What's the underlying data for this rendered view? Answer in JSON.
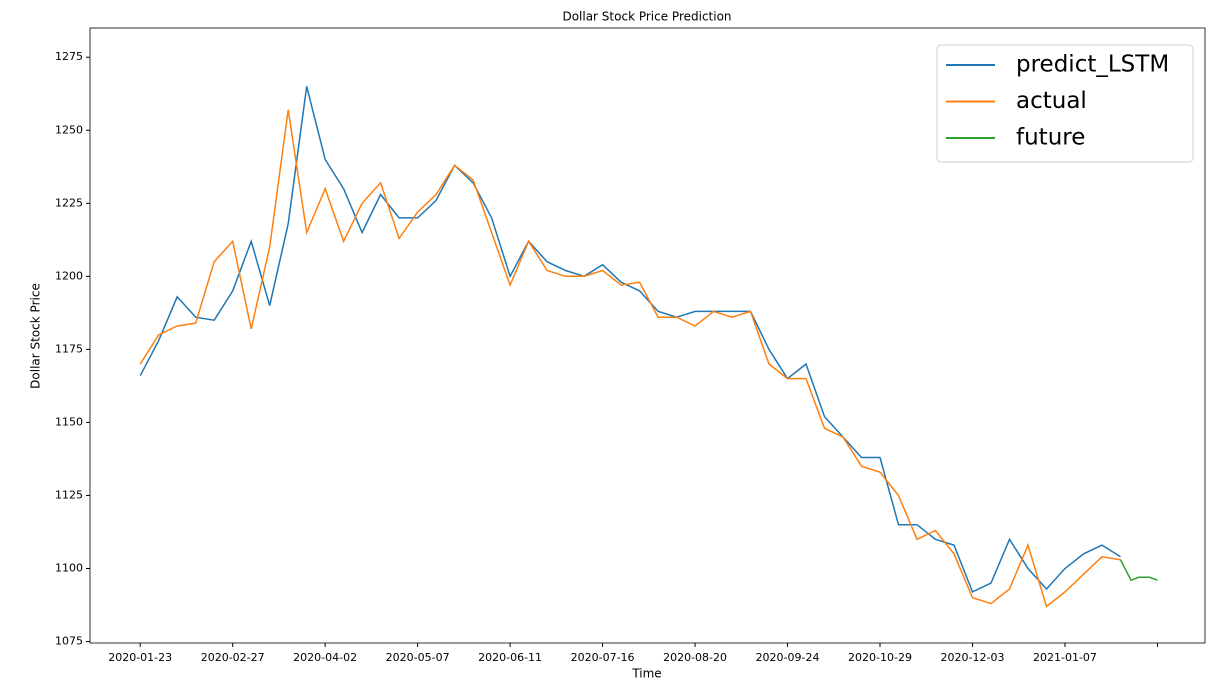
{
  "chart_data": {
    "type": "line",
    "title": "Dollar Stock Price Prediction",
    "x_label": "Time",
    "y_label": "Dollar Stock Price",
    "xlim": [
      "2020-01-04",
      "2021-03-01"
    ],
    "xticks": [
      "2020-01-23",
      "2020-02-27",
      "2020-04-02",
      "2020-05-07",
      "2020-06-11",
      "2020-07-16",
      "2020-08-20",
      "2020-09-24",
      "2020-10-29",
      "2020-12-03",
      "2021-01-07",
      {
        "value": "2021-02-11",
        "label": null
      }
    ],
    "ylim": [
      1074.5,
      1285
    ],
    "yticks": [
      1075,
      1100,
      1125,
      1150,
      1175,
      1200,
      1225,
      1250,
      1275
    ],
    "legend": "upper right",
    "series": [
      {
        "name": "predict_LSTM",
        "color": "#1f77b4",
        "x": [
          "2020-01-23",
          "2020-01-30",
          "2020-02-06",
          "2020-02-13",
          "2020-02-20",
          "2020-02-27",
          "2020-03-05",
          "2020-03-12",
          "2020-03-19",
          "2020-03-26",
          "2020-04-02",
          "2020-04-09",
          "2020-04-16",
          "2020-04-23",
          "2020-04-30",
          "2020-05-07",
          "2020-05-14",
          "2020-05-21",
          "2020-05-28",
          "2020-06-04",
          "2020-06-11",
          "2020-06-18",
          "2020-06-25",
          "2020-07-02",
          "2020-07-09",
          "2020-07-16",
          "2020-07-23",
          "2020-07-30",
          "2020-08-06",
          "2020-08-13",
          "2020-08-20",
          "2020-08-27",
          "2020-09-03",
          "2020-09-10",
          "2020-09-17",
          "2020-09-24",
          "2020-10-01",
          "2020-10-08",
          "2020-10-15",
          "2020-10-22",
          "2020-10-29",
          "2020-11-05",
          "2020-11-12",
          "2020-11-19",
          "2020-11-26",
          "2020-12-03",
          "2020-12-10",
          "2020-12-17",
          "2020-12-24",
          "2020-12-31",
          "2021-01-07",
          "2021-01-14",
          "2021-01-21",
          "2021-01-28"
        ],
        "values": [
          1166,
          1178,
          1193,
          1186,
          1185,
          1195,
          1212,
          1190,
          1218,
          1265,
          1240,
          1230,
          1215,
          1228,
          1220,
          1220,
          1226,
          1238,
          1232,
          1220,
          1200,
          1212,
          1205,
          1202,
          1200,
          1204,
          1198,
          1195,
          1188,
          1186,
          1188,
          1188,
          1188,
          1188,
          1175,
          1165,
          1170,
          1152,
          1145,
          1138,
          1138,
          1115,
          1115,
          1110,
          1108,
          1092,
          1095,
          1110,
          1100,
          1093,
          1100,
          1105,
          1108,
          1104
        ]
      },
      {
        "name": "actual",
        "color": "#ff7f0e",
        "x": [
          "2020-01-23",
          "2020-01-30",
          "2020-02-06",
          "2020-02-13",
          "2020-02-20",
          "2020-02-27",
          "2020-03-05",
          "2020-03-12",
          "2020-03-19",
          "2020-03-26",
          "2020-04-02",
          "2020-04-09",
          "2020-04-16",
          "2020-04-23",
          "2020-04-30",
          "2020-05-07",
          "2020-05-14",
          "2020-05-21",
          "2020-05-28",
          "2020-06-04",
          "2020-06-11",
          "2020-06-18",
          "2020-06-25",
          "2020-07-02",
          "2020-07-09",
          "2020-07-16",
          "2020-07-23",
          "2020-07-30",
          "2020-08-06",
          "2020-08-13",
          "2020-08-20",
          "2020-08-27",
          "2020-09-03",
          "2020-09-10",
          "2020-09-17",
          "2020-09-24",
          "2020-10-01",
          "2020-10-08",
          "2020-10-15",
          "2020-10-22",
          "2020-10-29",
          "2020-11-05",
          "2020-11-12",
          "2020-11-19",
          "2020-11-26",
          "2020-12-03",
          "2020-12-10",
          "2020-12-17",
          "2020-12-24",
          "2020-12-31",
          "2021-01-07",
          "2021-01-14",
          "2021-01-21",
          "2021-01-28"
        ],
        "values": [
          1170,
          1180,
          1183,
          1184,
          1205,
          1212,
          1182,
          1210,
          1257,
          1215,
          1230,
          1212,
          1225,
          1232,
          1213,
          1222,
          1228,
          1238,
          1233,
          1215,
          1197,
          1212,
          1202,
          1200,
          1200,
          1202,
          1197,
          1198,
          1186,
          1186,
          1183,
          1188,
          1186,
          1188,
          1170,
          1165,
          1165,
          1148,
          1145,
          1135,
          1133,
          1125,
          1110,
          1113,
          1105,
          1090,
          1088,
          1093,
          1108,
          1087,
          1092,
          1098,
          1104,
          1103
        ]
      },
      {
        "name": "future",
        "color": "#2ca02c",
        "x": [
          "2021-01-28",
          "2021-02-01",
          "2021-02-04",
          "2021-02-08",
          "2021-02-11"
        ],
        "values": [
          1103,
          1096,
          1097,
          1097,
          1096
        ]
      }
    ]
  }
}
